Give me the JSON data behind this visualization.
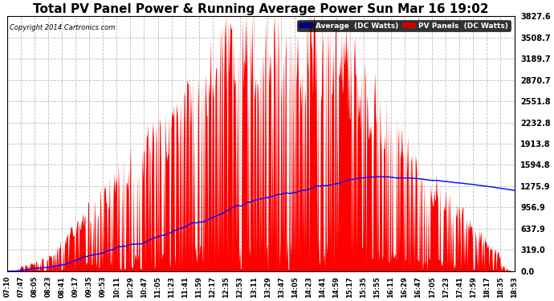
{
  "title": "Total PV Panel Power & Running Average Power Sun Mar 16 19:02",
  "copyright": "Copyright 2014 Cartronics.com",
  "y_ticks": [
    0.0,
    319.0,
    637.9,
    956.9,
    1275.9,
    1594.8,
    1913.8,
    2232.8,
    2551.8,
    2870.7,
    3189.7,
    3508.7,
    3827.6
  ],
  "x_labels": [
    "07:10",
    "07:47",
    "08:05",
    "08:23",
    "08:41",
    "09:17",
    "09:35",
    "09:53",
    "10:11",
    "10:29",
    "10:47",
    "11:05",
    "11:23",
    "11:41",
    "11:59",
    "12:17",
    "12:35",
    "12:53",
    "13:11",
    "13:29",
    "13:47",
    "14:05",
    "14:23",
    "14:41",
    "14:59",
    "15:17",
    "15:35",
    "15:55",
    "16:11",
    "16:29",
    "16:47",
    "17:05",
    "17:23",
    "17:41",
    "17:59",
    "18:17",
    "18:35",
    "18:53"
  ],
  "pv_color": "#FF0000",
  "avg_color": "#0000FF",
  "background_color": "#FFFFFF",
  "grid_color": "#BBBBBB",
  "title_fontsize": 11,
  "legend_avg_label": "Average  (DC Watts)",
  "legend_pv_label": "PV Panels  (DC Watts)",
  "legend_avg_bg": "#000080",
  "legend_pv_bg": "#CC0000",
  "ymax": 3827.6,
  "figwidth": 6.9,
  "figheight": 3.75,
  "dpi": 100
}
